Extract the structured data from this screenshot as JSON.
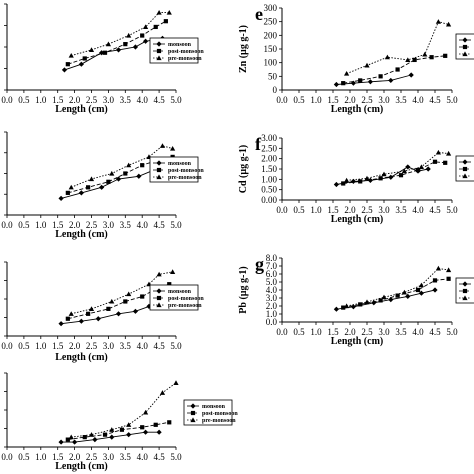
{
  "chart_data": [
    {
      "panel": "a",
      "visible_letter": "",
      "type": "line",
      "xlabel": "Length (cm)",
      "ylabel": "",
      "xlim": [
        0.0,
        5.0
      ],
      "xticks": [
        "0.0",
        "0.5",
        "1.0",
        "1.5",
        "2.0",
        "2.5",
        "3.0",
        "3.5",
        "4.0",
        "4.5",
        "5.0"
      ],
      "ylim": [
        0,
        30
      ],
      "yticks": [],
      "legend": {
        "position": "right",
        "entries": [
          "monsoon",
          "post-monsoon",
          "pre-monsoon"
        ]
      },
      "series": [
        {
          "name": "monsoon",
          "marker": "diamond",
          "dash": "solid",
          "x": [
            1.7,
            2.2,
            2.8,
            3.3,
            3.8,
            4.1,
            4.6
          ],
          "y": [
            7,
            9,
            13,
            14,
            15,
            17,
            18
          ]
        },
        {
          "name": "post-monsoon",
          "marker": "square",
          "dash": "dashed",
          "x": [
            1.8,
            2.3,
            2.9,
            3.5,
            4.0,
            4.4,
            4.7
          ],
          "y": [
            9,
            11,
            13,
            16,
            19,
            22,
            24
          ]
        },
        {
          "name": "pre-monsoon",
          "marker": "triangle",
          "dash": "dotted",
          "x": [
            1.9,
            2.5,
            3.0,
            3.6,
            4.1,
            4.5,
            4.8
          ],
          "y": [
            12,
            14,
            16,
            19,
            22,
            27,
            27
          ]
        }
      ]
    },
    {
      "panel": "b",
      "visible_letter": "",
      "type": "line",
      "xlabel": "Length (cm)",
      "ylabel": "",
      "xlim": [
        0.0,
        5.0
      ],
      "xticks": [
        "0.0",
        "0.5",
        "1.0",
        "1.5",
        "2.0",
        "2.5",
        "3.0",
        "3.5",
        "4.0",
        "4.5",
        "5.0"
      ],
      "ylim": [
        0,
        30
      ],
      "yticks": [],
      "legend": {
        "position": "right",
        "entries": [
          "monsoon",
          "post-monsoon",
          "pre-monsoon"
        ]
      },
      "series": [
        {
          "name": "monsoon",
          "marker": "diamond",
          "dash": "solid",
          "x": [
            1.6,
            2.2,
            2.8,
            3.3,
            3.9,
            4.3,
            4.7
          ],
          "y": [
            6,
            8,
            10,
            13,
            14,
            16,
            18
          ]
        },
        {
          "name": "post-monsoon",
          "marker": "square",
          "dash": "dashed",
          "x": [
            1.8,
            2.4,
            3.0,
            3.5,
            4.0,
            4.5,
            4.9
          ],
          "y": [
            8,
            10,
            12,
            15,
            18,
            20,
            21
          ]
        },
        {
          "name": "pre-monsoon",
          "marker": "triangle",
          "dash": "dotted",
          "x": [
            1.9,
            2.5,
            3.1,
            3.6,
            4.2,
            4.6,
            4.9
          ],
          "y": [
            10,
            13,
            15,
            18,
            21,
            25,
            24
          ]
        }
      ]
    },
    {
      "panel": "c",
      "visible_letter": "",
      "type": "line",
      "xlabel": "Length (cm)",
      "ylabel": "",
      "xlim": [
        0.0,
        5.0
      ],
      "xticks": [
        "0.0",
        "0.5",
        "1.0",
        "1.5",
        "2.0",
        "2.5",
        "3.0",
        "3.5",
        "4.0",
        "4.5",
        "5.0"
      ],
      "ylim": [
        0,
        30
      ],
      "yticks": [],
      "legend": {
        "position": "right",
        "entries": [
          "monsoon",
          "post-monsoon",
          "pre-monsoon"
        ]
      },
      "series": [
        {
          "name": "monsoon",
          "marker": "diamond",
          "dash": "solid",
          "x": [
            1.6,
            2.2,
            2.7,
            3.3,
            3.8,
            4.2,
            4.6
          ],
          "y": [
            5,
            6,
            7,
            9,
            10,
            12,
            13
          ]
        },
        {
          "name": "post-monsoon",
          "marker": "square",
          "dash": "dashed",
          "x": [
            1.8,
            2.4,
            3.0,
            3.5,
            4.0,
            4.4,
            4.8
          ],
          "y": [
            7,
            9,
            11,
            14,
            16,
            19,
            21
          ]
        },
        {
          "name": "pre-monsoon",
          "marker": "triangle",
          "dash": "dotted",
          "x": [
            1.9,
            2.5,
            3.1,
            3.6,
            4.2,
            4.5,
            4.9
          ],
          "y": [
            9,
            11,
            14,
            17,
            21,
            25,
            26
          ]
        }
      ]
    },
    {
      "panel": "d",
      "visible_letter": "",
      "type": "line",
      "xlabel": "Length (cm)",
      "ylabel": "",
      "xlim": [
        0.0,
        5.0
      ],
      "xticks": [
        "0.0",
        "0.5",
        "1.0",
        "1.5",
        "2.0",
        "2.5",
        "3.0",
        "3.5",
        "4.0",
        "4.5",
        "5.0"
      ],
      "ylim": [
        0,
        30
      ],
      "yticks": [],
      "legend": {
        "position": "right",
        "entries": [
          "monsoon",
          "post-monsoon",
          "pre-monsoon"
        ]
      },
      "series": [
        {
          "name": "monsoon",
          "marker": "diamond",
          "dash": "solid",
          "x": [
            1.6,
            2.0,
            2.6,
            3.1,
            3.6,
            4.1,
            4.5
          ],
          "y": [
            2,
            2,
            3,
            4,
            5,
            6,
            6
          ]
        },
        {
          "name": "post-monsoon",
          "marker": "square",
          "dash": "dashed",
          "x": [
            1.8,
            2.3,
            2.9,
            3.4,
            4.0,
            4.4,
            4.8
          ],
          "y": [
            3,
            4,
            5,
            7,
            8,
            9,
            10
          ]
        },
        {
          "name": "pre-monsoon",
          "marker": "triangle",
          "dash": "dotted",
          "x": [
            1.9,
            2.5,
            3.1,
            3.6,
            4.1,
            4.6,
            5.0
          ],
          "y": [
            4,
            5,
            7,
            9,
            14,
            22,
            26
          ]
        }
      ]
    },
    {
      "panel": "e",
      "visible_letter": "e",
      "type": "line",
      "xlabel": "Length (cm)",
      "ylabel": "Zn (µg g-1)",
      "xlim": [
        0.0,
        5.0
      ],
      "xticks": [
        "0.0",
        "0.5",
        "1.0",
        "1.5",
        "2.0",
        "2.5",
        "3.0",
        "3.5",
        "4.0",
        "4.5",
        "5.0"
      ],
      "ylim": [
        0,
        300
      ],
      "yticks": [
        "0",
        "50",
        "100",
        "150",
        "200",
        "250",
        "300"
      ],
      "legend": {
        "position": "right",
        "entries": [
          "",
          "",
          ""
        ]
      },
      "series": [
        {
          "name": "",
          "marker": "diamond",
          "dash": "solid",
          "x": [
            1.6,
            2.1,
            2.6,
            3.2,
            3.8
          ],
          "y": [
            20,
            25,
            30,
            35,
            55
          ]
        },
        {
          "name": "",
          "marker": "square",
          "dash": "dashed",
          "x": [
            1.8,
            2.3,
            2.9,
            3.4,
            3.9,
            4.4,
            4.8
          ],
          "y": [
            25,
            35,
            50,
            75,
            110,
            120,
            125
          ]
        },
        {
          "name": "",
          "marker": "triangle",
          "dash": "dotted",
          "x": [
            1.9,
            2.5,
            3.1,
            3.7,
            4.2,
            4.6,
            4.9
          ],
          "y": [
            60,
            90,
            120,
            110,
            130,
            250,
            240
          ]
        }
      ]
    },
    {
      "panel": "f",
      "visible_letter": "f",
      "type": "line",
      "xlabel": "Length (cm)",
      "ylabel": "Cd (µg g-1)",
      "xlim": [
        0.0,
        5.0
      ],
      "xticks": [
        "0.0",
        "0.5",
        "1.0",
        "1.5",
        "2.0",
        "2.5",
        "3.0",
        "3.5",
        "4.0",
        "4.5",
        "5.0"
      ],
      "ylim": [
        0.0,
        3.0
      ],
      "yticks": [
        "0.00",
        "0.50",
        "1.00",
        "1.50",
        "2.00",
        "2.50",
        "3.00"
      ],
      "legend": {
        "position": "right",
        "entries": [
          "",
          "",
          ""
        ]
      },
      "series": [
        {
          "name": "",
          "marker": "diamond",
          "dash": "solid",
          "x": [
            1.6,
            2.1,
            2.6,
            3.2,
            3.7,
            4.0,
            4.3
          ],
          "y": [
            0.75,
            0.9,
            0.95,
            1.1,
            1.6,
            1.4,
            1.5
          ]
        },
        {
          "name": "",
          "marker": "square",
          "dash": "dashed",
          "x": [
            1.8,
            2.3,
            2.9,
            3.5,
            4.0,
            4.5,
            4.8
          ],
          "y": [
            0.8,
            0.9,
            1.05,
            1.2,
            1.45,
            1.85,
            1.8
          ]
        },
        {
          "name": "",
          "marker": "triangle",
          "dash": "dotted",
          "x": [
            1.9,
            2.5,
            3.0,
            3.6,
            4.1,
            4.6,
            4.9
          ],
          "y": [
            0.95,
            1.05,
            1.25,
            1.4,
            1.6,
            2.3,
            2.25
          ]
        }
      ]
    },
    {
      "panel": "g",
      "visible_letter": "g",
      "type": "line",
      "xlabel": "Length (cm)",
      "ylabel": "Pb (µg g-1)",
      "xlim": [
        0.0,
        5.0
      ],
      "xticks": [
        "0.0",
        "0.5",
        "1.0",
        "1.5",
        "2.0",
        "2.5",
        "3.0",
        "3.5",
        "4.0",
        "4.5",
        "5.0"
      ],
      "ylim": [
        0.0,
        8.0
      ],
      "yticks": [
        "0.0",
        "1.0",
        "2.0",
        "3.0",
        "4.0",
        "5.0",
        "6.0",
        "7.0",
        "8.0"
      ],
      "legend": {
        "position": "right",
        "entries": [
          "",
          "",
          ""
        ]
      },
      "series": [
        {
          "name": "",
          "marker": "diamond",
          "dash": "solid",
          "x": [
            1.6,
            2.1,
            2.7,
            3.2,
            3.7,
            4.1,
            4.5
          ],
          "y": [
            1.6,
            1.9,
            2.4,
            2.8,
            3.2,
            3.6,
            4.0
          ]
        },
        {
          "name": "",
          "marker": "square",
          "dash": "dashed",
          "x": [
            1.8,
            2.3,
            2.9,
            3.4,
            4.0,
            4.5,
            4.9
          ],
          "y": [
            1.8,
            2.2,
            2.7,
            3.3,
            4.0,
            5.2,
            5.4
          ]
        },
        {
          "name": "",
          "marker": "triangle",
          "dash": "dotted",
          "x": [
            1.9,
            2.5,
            3.0,
            3.6,
            4.1,
            4.6,
            4.9
          ],
          "y": [
            2.0,
            2.5,
            3.1,
            3.7,
            4.6,
            6.7,
            6.5
          ]
        }
      ]
    }
  ]
}
